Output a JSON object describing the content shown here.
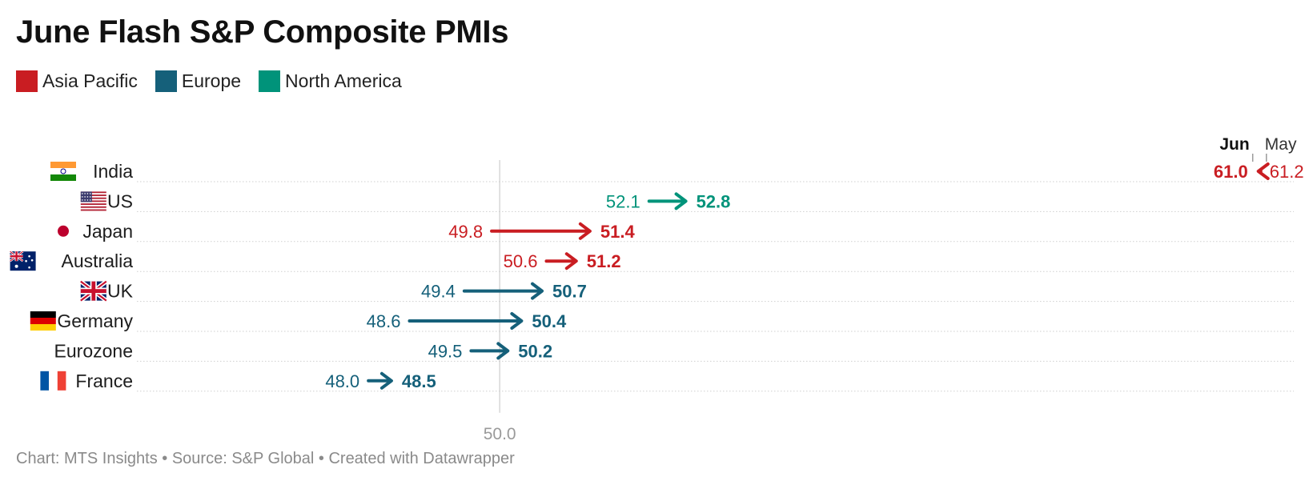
{
  "title": "June Flash S&P Composite PMIs",
  "legend": [
    {
      "label": "Asia Pacific",
      "color": "#c91d22"
    },
    {
      "label": "Europe",
      "color": "#15607a"
    },
    {
      "label": "North America",
      "color": "#00937a"
    }
  ],
  "chart_data": {
    "type": "arrow",
    "title": "June Flash S&P Composite PMIs",
    "x_axis": {
      "min": 44.7,
      "max": 61.6,
      "reference_line": 50.0,
      "reference_label": "50.0"
    },
    "column_labels": {
      "from": "May",
      "to": "Jun"
    },
    "rows": [
      {
        "country": "India",
        "region": "Asia Pacific",
        "may": 61.2,
        "jun": 61.0,
        "may_label": "61.2",
        "jun_label": "61.0",
        "flag": "india"
      },
      {
        "country": "US",
        "region": "North America",
        "may": 52.1,
        "jun": 52.8,
        "may_label": "52.1",
        "jun_label": "52.8",
        "flag": "us"
      },
      {
        "country": "Japan",
        "region": "Asia Pacific",
        "may": 49.8,
        "jun": 51.4,
        "may_label": "49.8",
        "jun_label": "51.4",
        "flag": "japan"
      },
      {
        "country": "Australia",
        "region": "Asia Pacific",
        "may": 50.6,
        "jun": 51.2,
        "may_label": "50.6",
        "jun_label": "51.2",
        "flag": "australia"
      },
      {
        "country": "UK",
        "region": "Europe",
        "may": 49.4,
        "jun": 50.7,
        "may_label": "49.4",
        "jun_label": "50.7",
        "flag": "uk"
      },
      {
        "country": "Germany",
        "region": "Europe",
        "may": 48.6,
        "jun": 50.4,
        "may_label": "48.6",
        "jun_label": "50.4",
        "flag": "germany"
      },
      {
        "country": "Eurozone",
        "region": "Europe",
        "may": 49.5,
        "jun": 50.2,
        "may_label": "49.5",
        "jun_label": "50.2",
        "flag": ""
      },
      {
        "country": "France",
        "region": "Europe",
        "may": 48.0,
        "jun": 48.5,
        "may_label": "48.0",
        "jun_label": "48.5",
        "flag": "france"
      }
    ]
  },
  "footer": "Chart: MTS Insights • Source: S&P Global • Created with Datawrapper"
}
